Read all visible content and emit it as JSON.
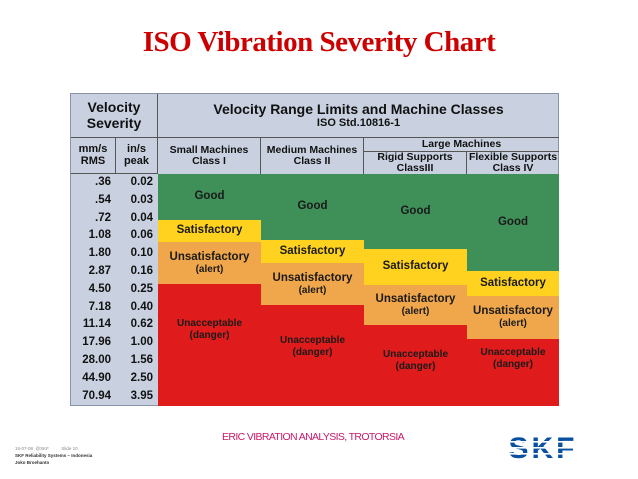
{
  "title": "ISO Vibration Severity Chart",
  "chart": {
    "severity_header": [
      "Velocity",
      "Severity"
    ],
    "range_title": "Velocity Range Limits and Machine Classes",
    "standard": "ISO Std.10816-1",
    "large_machines": "Large Machines",
    "columns": [
      {
        "line1": "Small Machines",
        "line2": "Class I"
      },
      {
        "line1": "Medium Machines",
        "line2": "Class II"
      },
      {
        "line1": "Rigid Supports",
        "line2": "ClassIII"
      },
      {
        "line1": "Flexible Supports",
        "line2": "Class IV"
      }
    ],
    "unit_mms": [
      "mm/s",
      "RMS"
    ],
    "unit_ins": [
      "in/s",
      "peak"
    ],
    "rows": [
      {
        "mms": ".36",
        "ins": "0.02"
      },
      {
        "mms": ".54",
        "ins": "0.03"
      },
      {
        "mms": ".72",
        "ins": "0.04"
      },
      {
        "mms": "1.08",
        "ins": "0.06"
      },
      {
        "mms": "1.80",
        "ins": "0.10"
      },
      {
        "mms": "2.87",
        "ins": "0.16"
      },
      {
        "mms": "4.50",
        "ins": "0.25"
      },
      {
        "mms": "7.18",
        "ins": "0.40"
      },
      {
        "mms": "11.14",
        "ins": "0.62"
      },
      {
        "mms": "17.96",
        "ins": "1.00"
      },
      {
        "mms": "28.00",
        "ins": "1.56"
      },
      {
        "mms": "44.90",
        "ins": "2.50"
      },
      {
        "mms": "70.94",
        "ins": "3.95"
      }
    ],
    "zones": {
      "good": "Good",
      "satisfactory": "Satisfactory",
      "unsatisfactory": "Unsatisfactory",
      "alert": "(alert)",
      "unacceptable": "Unacceptable",
      "danger": "(danger)"
    },
    "colors": {
      "good": "#3f8f58",
      "satisfactory": "#ffd21f",
      "unsatisfactory": "#f0a64a",
      "unacceptable": "#e01b1b"
    }
  },
  "footer": {
    "date_line": "15-07-08  @SKF          Slide 10",
    "company": "SKF Reliability Systems – Indonesia",
    "author": "Joko Broehanto",
    "tagline": "ERIC VIBRATION ANALYSIS, TROTORSIA",
    "logo": "SKF"
  }
}
